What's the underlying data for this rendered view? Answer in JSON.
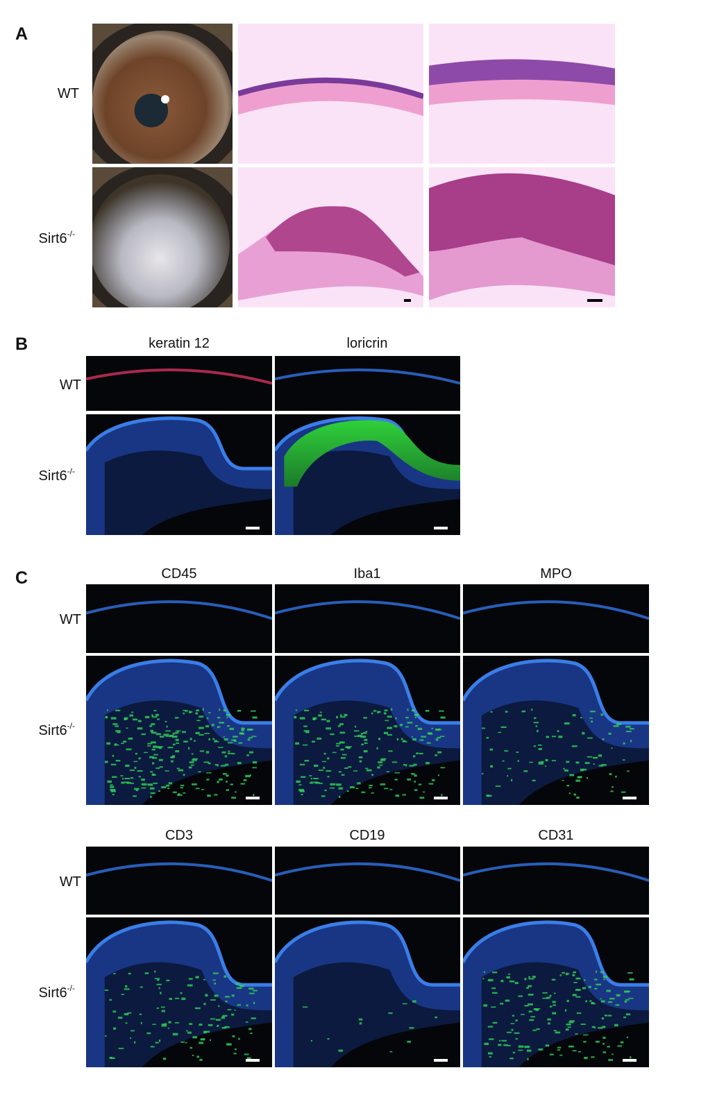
{
  "panel_a": {
    "label": "A",
    "row_labels": [
      {
        "text": "WT"
      },
      {
        "text": "Sirt6",
        "superscript": "-/-"
      }
    ]
  },
  "panel_b": {
    "label": "B",
    "column_titles": [
      "keratin 12",
      "loricrin"
    ],
    "row_labels": [
      {
        "text": "WT"
      },
      {
        "text": "Sirt6",
        "superscript": "-/-"
      }
    ]
  },
  "panel_c": {
    "label": "C",
    "groups": [
      {
        "column_titles": [
          "CD45",
          "Iba1",
          "MPO"
        ],
        "row_labels": [
          {
            "text": "WT"
          },
          {
            "text": "Sirt6",
            "superscript": "-/-"
          }
        ]
      },
      {
        "column_titles": [
          "CD3",
          "CD19",
          "CD31"
        ],
        "row_labels": [
          {
            "text": "WT"
          },
          {
            "text": "Sirt6",
            "superscript": "-/-"
          }
        ]
      }
    ]
  }
}
